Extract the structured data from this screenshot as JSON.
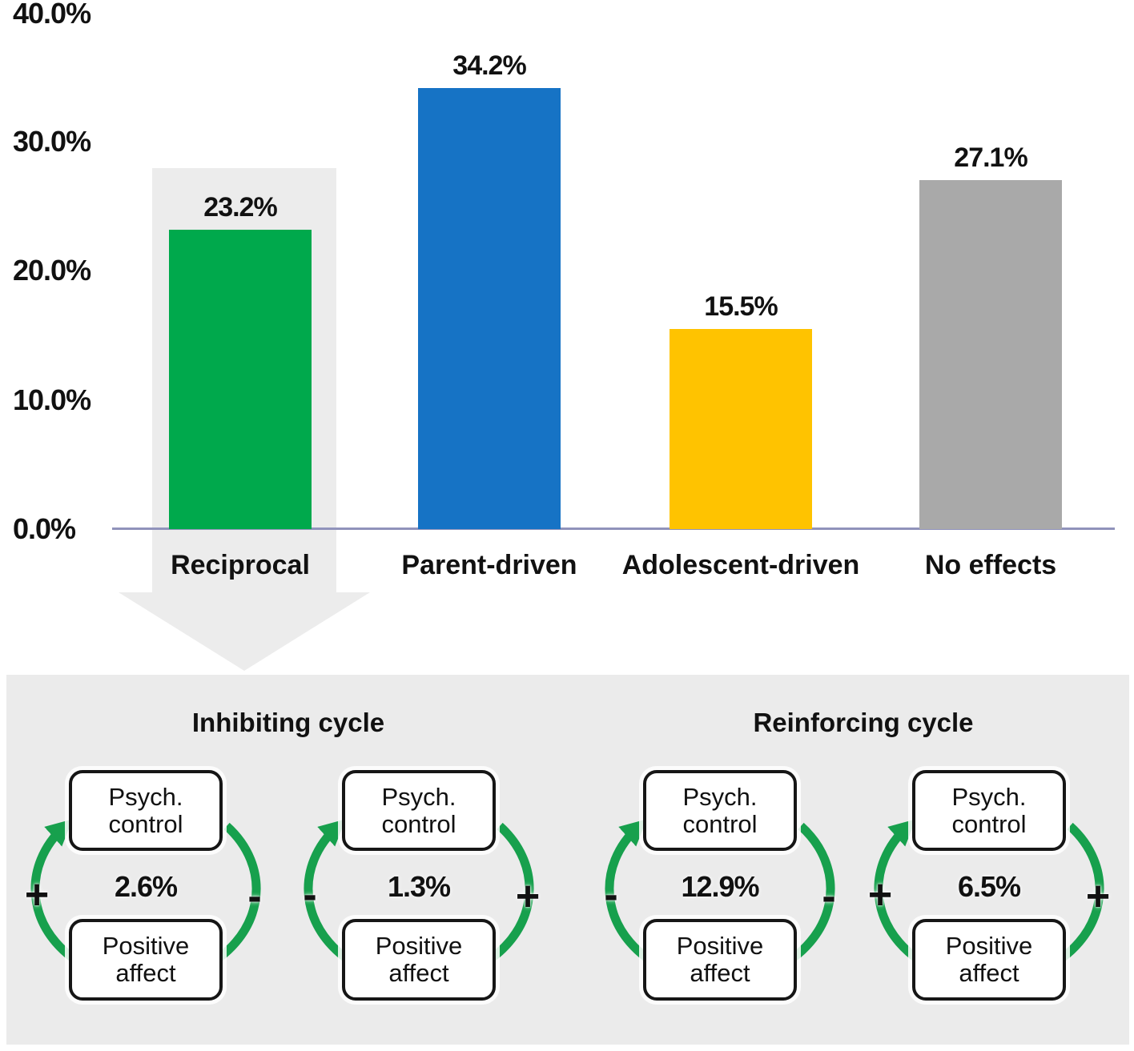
{
  "chart_data": {
    "type": "bar",
    "title": "",
    "categories": [
      "Reciprocal",
      "Parent-driven",
      "Adolescent-driven",
      "No effects"
    ],
    "values": [
      23.2,
      34.2,
      15.5,
      27.1
    ],
    "value_labels": [
      "23.2%",
      "34.2%",
      "15.5%",
      "27.1%"
    ],
    "bar_colors": [
      "#00a94c",
      "#1673c5",
      "#ffc300",
      "#a9a9a9"
    ],
    "yticks": [
      "40.0%",
      "30.0%",
      "20.0%",
      "10.0%",
      "0.0%"
    ],
    "ylim": [
      0,
      40
    ],
    "grid": false,
    "legend": false
  },
  "colors": {
    "panel_bg": "#ebebeb",
    "highlight_arrow": "#ececec",
    "axis_line": "#9093bb",
    "cycle_arrow_green": "#17a04d"
  },
  "diagram": {
    "groups": [
      {
        "title": "Inhibiting cycle"
      },
      {
        "title": "Reinforcing cycle"
      }
    ],
    "box_top": {
      "line1": "Psych.",
      "line2": "control"
    },
    "box_bottom": {
      "line1": "Positive",
      "line2": "affect"
    },
    "cycles": [
      {
        "value": "2.6%",
        "left_sign": "+",
        "right_sign": "-"
      },
      {
        "value": "1.3%",
        "left_sign": "-",
        "right_sign": "+"
      },
      {
        "value": "12.9%",
        "left_sign": "-",
        "right_sign": "-"
      },
      {
        "value": "6.5%",
        "left_sign": "+",
        "right_sign": "+"
      }
    ]
  }
}
